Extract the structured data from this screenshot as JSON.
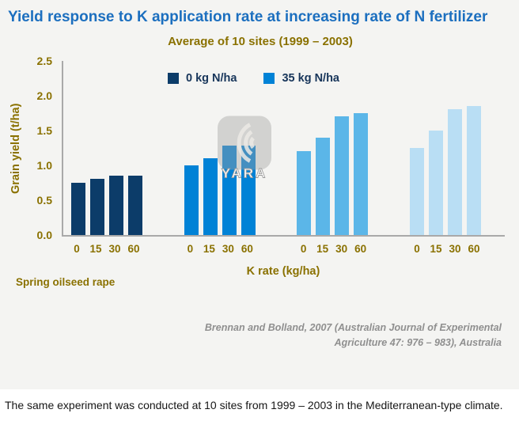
{
  "title": "Yield response to K application rate at increasing rate of N fertilizer",
  "subtitle": "Average of 10 sites (1999 – 2003)",
  "chart_data": {
    "type": "bar",
    "title": "Average of 10 sites (1999 – 2003)",
    "xlabel": "K rate (kg/ha)",
    "ylabel": "Grain yield (t/ha)",
    "ylim": [
      0,
      2.5
    ],
    "ytick_labels": [
      "0.0",
      "0.5",
      "1.0",
      "1.5",
      "2.0",
      "2.5"
    ],
    "grid": false,
    "legend_position": "top-center",
    "categories": [
      "0",
      "15",
      "30",
      "60"
    ],
    "series": [
      {
        "name": "0 kg N/ha",
        "color": "#0c3c69",
        "values": [
          0.75,
          0.8,
          0.85,
          0.85
        ]
      },
      {
        "name": "35 kg N/ha",
        "color": "#0082d6",
        "values": [
          1.0,
          1.1,
          1.28,
          1.28
        ]
      },
      {
        "name": "",
        "color": "#5bb6e8",
        "values": [
          1.2,
          1.4,
          1.7,
          1.75
        ]
      },
      {
        "name": "",
        "color": "#b9def4",
        "values": [
          1.25,
          1.5,
          1.8,
          1.85
        ]
      }
    ],
    "legend": [
      {
        "label": "0 kg N/ha",
        "color": "#0c3c69"
      },
      {
        "label": "35 kg N/ha",
        "color": "#0082d6"
      }
    ],
    "annotation": "Spring oilseed rape"
  },
  "watermark": {
    "label": "YARA"
  },
  "citation": {
    "line1": "Brennan and Bolland, 2007 (Australian Journal of Experimental",
    "line2": "Agriculture 47: 976 – 983), Australia"
  },
  "footer_text": "The same experiment was conducted at 10 sites from 1999 – 2003 in the Mediterranean-type climate.",
  "colors": {
    "title": "#1c6fbf",
    "axis_labels": "#8a7100",
    "citation": "#8f8f8f",
    "axis_line": "#a9a9a9",
    "panel_background": "#f4f4f2"
  }
}
